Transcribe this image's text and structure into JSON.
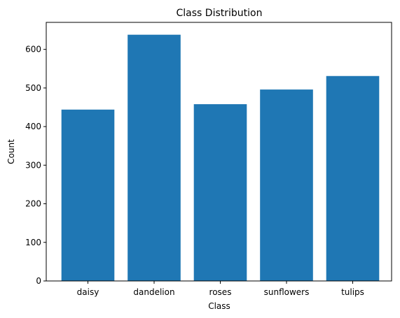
{
  "chart_data": {
    "type": "bar",
    "title": "Class Distribution",
    "xlabel": "Class",
    "ylabel": "Count",
    "categories": [
      "daisy",
      "dandelion",
      "roses",
      "sunflowers",
      "tulips"
    ],
    "values": [
      444,
      638,
      458,
      496,
      531
    ],
    "ylim": [
      0,
      670
    ],
    "yticks": [
      0,
      100,
      200,
      300,
      400,
      500,
      600
    ],
    "bar_color": "#1f77b4",
    "grid": false,
    "legend": "none"
  }
}
